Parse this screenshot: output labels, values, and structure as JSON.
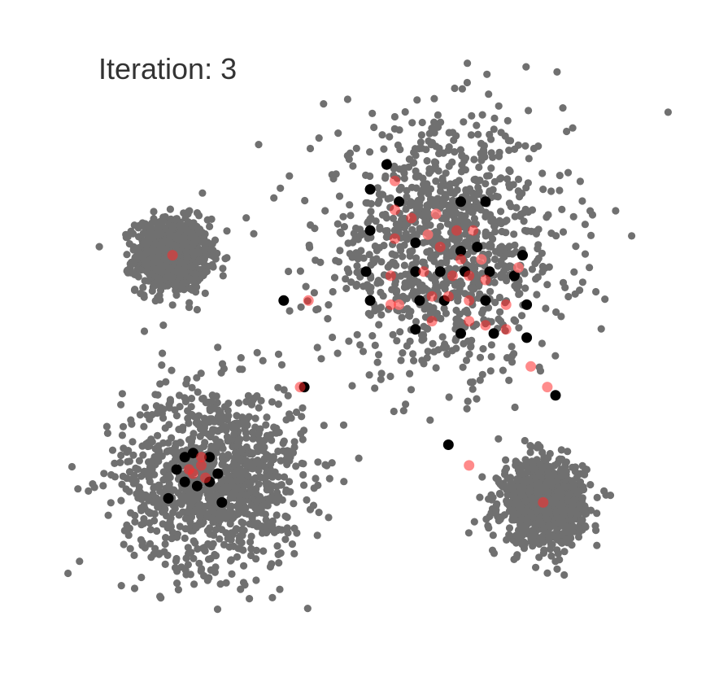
{
  "chart_data": {
    "type": "scatter",
    "title": "",
    "xlabel": "",
    "ylabel": "",
    "annotations": {
      "iteration_label": "Iteration: 3"
    },
    "axes_visible": false,
    "grid": false,
    "legend": "none",
    "xlim": [
      -3.9,
      3.9
    ],
    "ylim": [
      -3.9,
      3.9
    ],
    "colors": {
      "points": "#707070",
      "centroids_old": "#000000",
      "centroids_new": "#ff2a2a",
      "centroids_new_faded": "#ff7070"
    },
    "point_clusters": [
      {
        "center": [
          -2.3,
          1.1
        ],
        "spread": 0.22,
        "count": 950
      },
      {
        "center": [
          -1.8,
          -1.6
        ],
        "spread": 0.55,
        "count": 1100
      },
      {
        "center": [
          1.0,
          1.2
        ],
        "spread": 0.75,
        "count": 1050
      },
      {
        "center": [
          2.2,
          -1.9
        ],
        "spread": 0.25,
        "count": 950
      }
    ],
    "old_centroids": [
      [
        0.3,
        2.2
      ],
      [
        0.1,
        1.9
      ],
      [
        0.45,
        1.75
      ],
      [
        1.2,
        1.75
      ],
      [
        1.5,
        1.75
      ],
      [
        0.1,
        1.4
      ],
      [
        0.65,
        1.25
      ],
      [
        1.2,
        1.15
      ],
      [
        1.4,
        1.2
      ],
      [
        1.95,
        1.1
      ],
      [
        0.05,
        0.9
      ],
      [
        0.65,
        0.9
      ],
      [
        0.95,
        0.9
      ],
      [
        1.25,
        0.9
      ],
      [
        1.55,
        0.9
      ],
      [
        1.85,
        0.85
      ],
      [
        0.1,
        0.55
      ],
      [
        0.7,
        0.55
      ],
      [
        1.0,
        0.55
      ],
      [
        1.5,
        0.55
      ],
      [
        2.0,
        0.5
      ],
      [
        0.65,
        0.2
      ],
      [
        1.2,
        0.15
      ],
      [
        1.6,
        0.15
      ],
      [
        2.0,
        0.1
      ],
      [
        -0.95,
        0.55
      ],
      [
        -0.7,
        -0.5
      ],
      [
        2.35,
        -0.6
      ],
      [
        1.05,
        -1.2
      ],
      [
        -2.15,
        -1.35
      ],
      [
        -2.25,
        -1.5
      ],
      [
        -2.15,
        -1.65
      ],
      [
        -2.0,
        -1.7
      ],
      [
        -1.85,
        -1.65
      ],
      [
        -1.75,
        -1.55
      ],
      [
        -1.85,
        -1.35
      ],
      [
        -2.05,
        -1.3
      ],
      [
        -2.35,
        -1.85
      ],
      [
        -1.7,
        -1.9
      ]
    ],
    "new_centroids": [
      [
        0.4,
        2.0
      ],
      [
        0.4,
        1.65
      ],
      [
        0.6,
        1.55
      ],
      [
        1.15,
        1.4
      ],
      [
        1.35,
        1.4
      ],
      [
        0.4,
        1.3
      ],
      [
        0.95,
        1.2
      ],
      [
        1.2,
        1.05
      ],
      [
        0.35,
        0.85
      ],
      [
        0.75,
        0.9
      ],
      [
        1.1,
        0.85
      ],
      [
        1.3,
        0.85
      ],
      [
        1.5,
        0.8
      ],
      [
        0.35,
        0.5
      ],
      [
        0.85,
        0.6
      ],
      [
        1.05,
        0.6
      ],
      [
        1.3,
        0.55
      ],
      [
        1.75,
        0.5
      ],
      [
        0.85,
        0.3
      ],
      [
        1.3,
        0.3
      ],
      [
        1.5,
        0.25
      ],
      [
        1.75,
        0.2
      ],
      [
        -0.65,
        0.55
      ],
      [
        -0.75,
        -0.5
      ],
      [
        2.05,
        -0.25
      ],
      [
        1.3,
        -1.45
      ],
      [
        -1.95,
        -1.45
      ],
      [
        -2.1,
        -1.5
      ],
      [
        -1.9,
        -1.6
      ],
      [
        -2.05,
        -1.55
      ],
      [
        -1.95,
        -1.35
      ],
      [
        -2.3,
        1.1
      ],
      [
        2.2,
        -1.9
      ]
    ],
    "new_centroids_faded": [
      [
        0.8,
        1.35
      ],
      [
        1.45,
        1.05
      ],
      [
        1.9,
        0.95
      ],
      [
        0.9,
        1.6
      ],
      [
        0.45,
        0.5
      ],
      [
        2.25,
        -0.5
      ]
    ]
  }
}
